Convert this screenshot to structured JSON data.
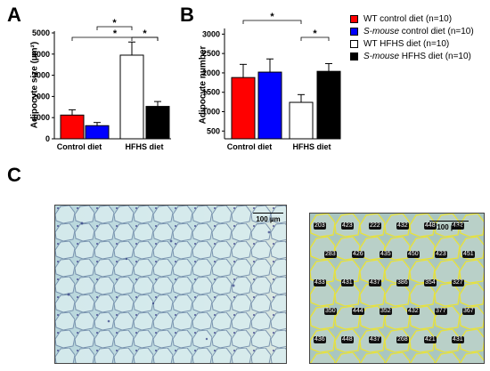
{
  "panels": {
    "a": "A",
    "b": "B",
    "c": "C"
  },
  "legend": [
    {
      "color": "#ff0000",
      "prefix": "WT",
      "italic": "",
      "suffix": " control diet (n=10)"
    },
    {
      "color": "#0000ff",
      "prefix": "",
      "italic": "S-mouse",
      "suffix": " control diet (n=10)"
    },
    {
      "color": "#ffffff",
      "prefix": "WT",
      "italic": "",
      "suffix": " HFHS diet (n=10)"
    },
    {
      "color": "#000000",
      "prefix": "",
      "italic": "S-mouse",
      "suffix": " HFHS diet (n=10)"
    }
  ],
  "chart_data": [
    {
      "type": "bar",
      "panel": "A",
      "ylabel": "Adipocyte size (µm²)",
      "categories": [
        "Control diet",
        "HFHS diet"
      ],
      "yticks": [
        0,
        1000,
        2000,
        3000,
        4000,
        5000
      ],
      "ytick_labels": [
        "0",
        "1000",
        "2000",
        "3000",
        "4000",
        "5000"
      ],
      "ylim": [
        0,
        5000
      ],
      "series": [
        {
          "color": "#ff0000",
          "values": [
            1120,
            null
          ],
          "errors": [
            250,
            null
          ]
        },
        {
          "color": "#0000ff",
          "values": [
            620,
            null
          ],
          "errors": [
            150,
            null
          ]
        },
        {
          "color": "#ffffff",
          "values": [
            null,
            3950
          ],
          "errors": [
            null,
            620
          ]
        },
        {
          "color": "#000000",
          "values": [
            null,
            1530
          ],
          "errors": [
            null,
            230
          ]
        }
      ],
      "significance": [
        {
          "from": 0,
          "to": 3,
          "label": "*"
        },
        {
          "from": 1,
          "to": 2,
          "label": "*"
        },
        {
          "from": 2,
          "to": 3,
          "label": "*"
        }
      ]
    },
    {
      "type": "bar",
      "panel": "B",
      "ylabel": "Adipocyte number",
      "categories": [
        "Control diet",
        "HFHS diet"
      ],
      "yticks": [
        500,
        1000,
        1500,
        2000,
        2500,
        3000
      ],
      "ytick_labels": [
        "500",
        "1000",
        "1500",
        "2000",
        "2500",
        "3000"
      ],
      "ylim": [
        300,
        3100
      ],
      "series": [
        {
          "color": "#ff0000",
          "values": [
            1880,
            null
          ],
          "errors": [
            340,
            null
          ]
        },
        {
          "color": "#0000ff",
          "values": [
            2020,
            null
          ],
          "errors": [
            340,
            null
          ]
        },
        {
          "color": "#ffffff",
          "values": [
            null,
            1240
          ],
          "errors": [
            null,
            200
          ]
        },
        {
          "color": "#000000",
          "values": [
            null,
            2040
          ],
          "errors": [
            null,
            200
          ]
        }
      ],
      "significance": [
        {
          "from": 0,
          "to": 2,
          "label": "*"
        },
        {
          "from": 2,
          "to": 3,
          "label": "*"
        }
      ]
    }
  ],
  "micrographs": [
    {
      "scale_label": "100 µm"
    },
    {
      "scale_label": "100 µm",
      "cell_labels": [
        "203",
        "423",
        "222",
        "432",
        "448",
        "432",
        "283",
        "426",
        "435",
        "450",
        "423",
        "451",
        "433",
        "431",
        "437",
        "386",
        "354",
        "327",
        "350",
        "444",
        "352",
        "432",
        "377",
        "367",
        "436",
        "448",
        "437",
        "268",
        "421",
        "431"
      ]
    }
  ]
}
